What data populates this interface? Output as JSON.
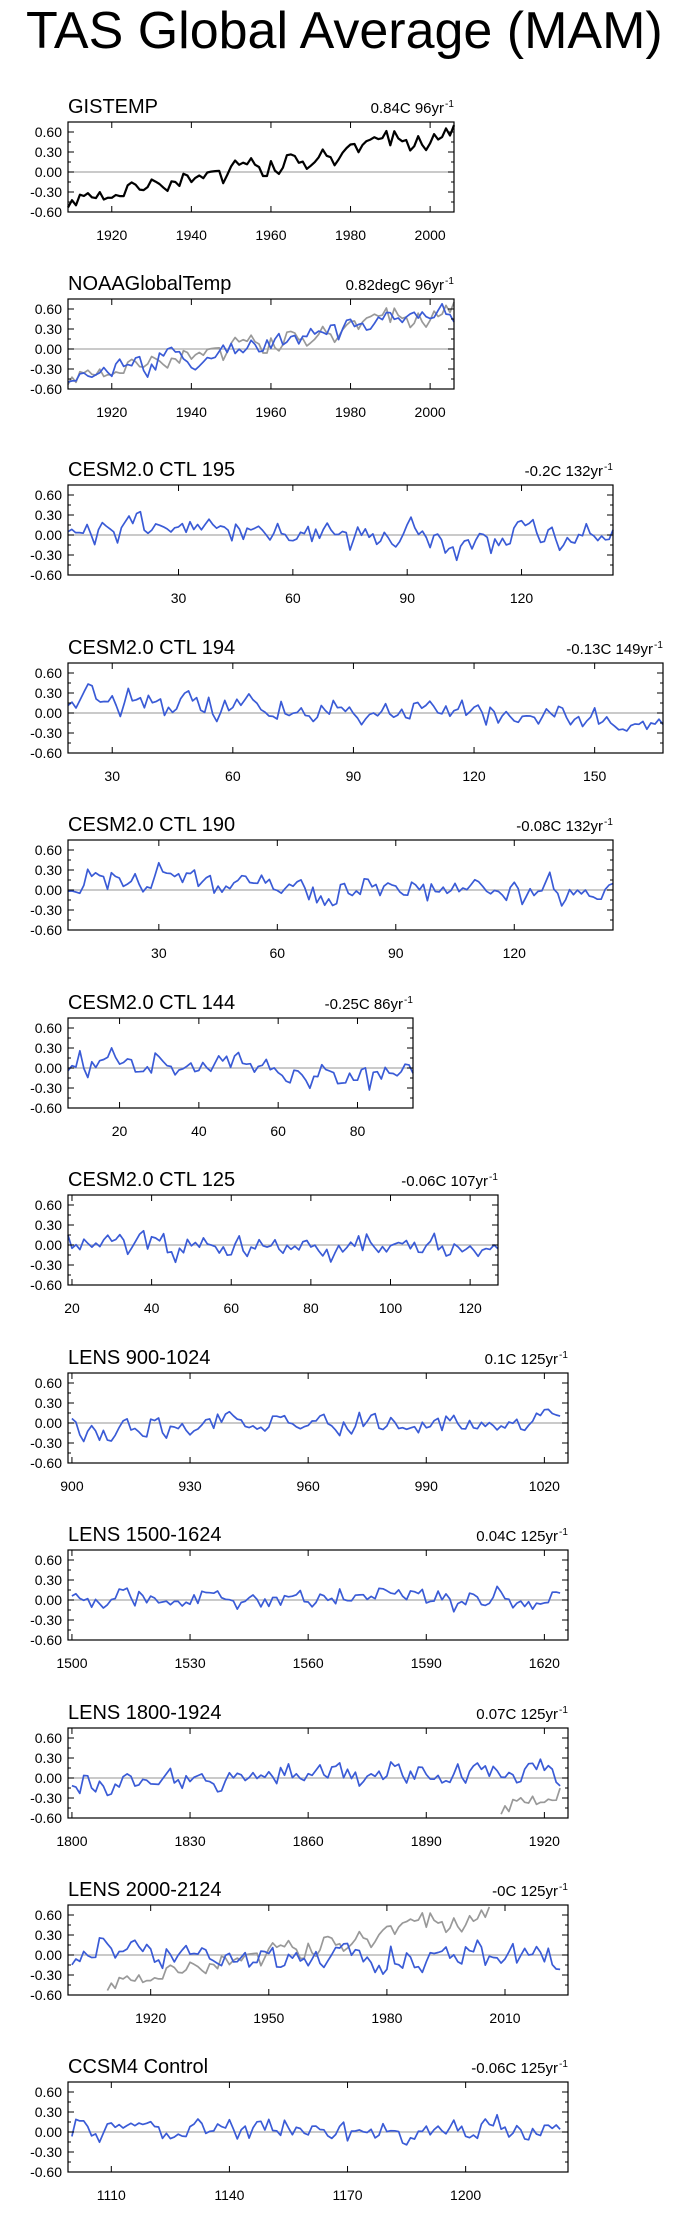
{
  "title": "TAS Global Average (MAM)",
  "colors": {
    "observed": "#000000",
    "model": "#3a5bd6",
    "reference": "#999999",
    "zero_line": "#aaaaaa"
  },
  "chart_data": [
    {
      "type": "line",
      "title": "GISTEMP",
      "trend": "0.84C 96yr",
      "trend_exp": "-1",
      "xlim": [
        1909,
        2006
      ],
      "ylim": [
        -0.6,
        0.75
      ],
      "yticks": [
        "0.60",
        "0.30",
        "0.00",
        "-0.30",
        "-0.60"
      ],
      "ytick_values": [
        0.6,
        0.3,
        0,
        -0.3,
        -0.6
      ],
      "xticks": [
        "1920",
        "1940",
        "1960",
        "1980",
        "2000"
      ],
      "xtick_values": [
        1920,
        1940,
        1960,
        1980,
        2000
      ],
      "series": [
        {
          "name": "GISTEMP",
          "color": "#000000",
          "seed": 11,
          "x_start": 1909,
          "x_end": 2006,
          "start": -0.45,
          "end": 0.6,
          "noise": 0.09
        }
      ]
    },
    {
      "type": "line",
      "title": "NOAAGlobalTemp",
      "trend": "0.82degC 96yr",
      "trend_exp": "-1",
      "xlim": [
        1909,
        2006
      ],
      "ylim": [
        -0.6,
        0.75
      ],
      "yticks": [
        "0.60",
        "0.30",
        "0.00",
        "-0.30",
        "-0.60"
      ],
      "ytick_values": [
        0.6,
        0.3,
        0,
        -0.3,
        -0.6
      ],
      "xticks": [
        "1920",
        "1940",
        "1960",
        "1980",
        "2000"
      ],
      "xtick_values": [
        1920,
        1940,
        1960,
        1980,
        2000
      ],
      "series": [
        {
          "name": "GISTEMP",
          "color": "#999999",
          "seed": 11,
          "x_start": 1909,
          "x_end": 2006,
          "start": -0.45,
          "end": 0.6,
          "noise": 0.09
        },
        {
          "name": "NOAAGlobalTemp",
          "color": "#3a5bd6",
          "seed": 12,
          "x_start": 1909,
          "x_end": 2006,
          "start": -0.42,
          "end": 0.58,
          "noise": 0.09
        }
      ]
    },
    {
      "type": "line",
      "title": "CESM2.0 CTL 195",
      "trend": "-0.2C 132yr",
      "trend_exp": "-1",
      "xlim": [
        1,
        144
      ],
      "ylim": [
        -0.6,
        0.75
      ],
      "yticks": [
        "0.60",
        "0.30",
        "0.00",
        "-0.30",
        "-0.60"
      ],
      "ytick_values": [
        0.6,
        0.3,
        0,
        -0.3,
        -0.6
      ],
      "xticks": [
        "30",
        "60",
        "90",
        "120"
      ],
      "xtick_values": [
        30,
        60,
        90,
        120
      ],
      "series": [
        {
          "name": "CESM2.0 CTL 195",
          "color": "#3a5bd6",
          "seed": 21,
          "x_start": 1,
          "x_end": 144,
          "start": 0.1,
          "end": -0.1,
          "noise": 0.13
        }
      ]
    },
    {
      "type": "line",
      "title": "CESM2.0 CTL 194",
      "trend": "-0.13C 149yr",
      "trend_exp": "-1",
      "xlim": [
        19,
        167
      ],
      "ylim": [
        -0.6,
        0.75
      ],
      "yticks": [
        "0.60",
        "0.30",
        "0.00",
        "-0.30",
        "-0.60"
      ],
      "ytick_values": [
        0.6,
        0.3,
        0,
        -0.3,
        -0.6
      ],
      "xticks": [
        "30",
        "60",
        "90",
        "120",
        "150"
      ],
      "xtick_values": [
        30,
        60,
        90,
        120,
        150
      ],
      "series": [
        {
          "name": "CESM2.0 CTL 194",
          "color": "#3a5bd6",
          "seed": 22,
          "x_start": 19,
          "x_end": 167,
          "start": 0.15,
          "end": -0.12,
          "noise": 0.12
        }
      ]
    },
    {
      "type": "line",
      "title": "CESM2.0 CTL 190",
      "trend": "-0.08C 132yr",
      "trend_exp": "-1",
      "xlim": [
        7,
        145
      ],
      "ylim": [
        -0.6,
        0.75
      ],
      "yticks": [
        "0.60",
        "0.30",
        "0.00",
        "-0.30",
        "-0.60"
      ],
      "ytick_values": [
        0.6,
        0.3,
        0,
        -0.3,
        -0.6
      ],
      "xticks": [
        "30",
        "60",
        "90",
        "120"
      ],
      "xtick_values": [
        30,
        60,
        90,
        120
      ],
      "series": [
        {
          "name": "CESM2.0 CTL 190",
          "color": "#3a5bd6",
          "seed": 23,
          "x_start": 7,
          "x_end": 145,
          "start": 0.15,
          "end": -0.05,
          "noise": 0.12
        }
      ]
    },
    {
      "type": "line",
      "title": "CESM2.0 CTL 144",
      "trend": "-0.25C 86yr",
      "trend_exp": "-1",
      "xlim": [
        7,
        94
      ],
      "ylim": [
        -0.6,
        0.75
      ],
      "yticks": [
        "0.60",
        "0.30",
        "0.00",
        "-0.30",
        "-0.60"
      ],
      "ytick_values": [
        0.6,
        0.3,
        0,
        -0.3,
        -0.6
      ],
      "xticks": [
        "20",
        "40",
        "60",
        "80"
      ],
      "xtick_values": [
        20,
        40,
        60,
        80
      ],
      "series": [
        {
          "name": "CESM2.0 CTL 144",
          "color": "#3a5bd6",
          "seed": 24,
          "x_start": 7,
          "x_end": 94,
          "start": 0.12,
          "end": -0.15,
          "noise": 0.12
        }
      ]
    },
    {
      "type": "line",
      "title": "CESM2.0 CTL 125",
      "trend": "-0.06C 107yr",
      "trend_exp": "-1",
      "xlim": [
        19,
        127
      ],
      "ylim": [
        -0.6,
        0.75
      ],
      "yticks": [
        "0.60",
        "0.30",
        "0.00",
        "-0.30",
        "-0.60"
      ],
      "ytick_values": [
        0.6,
        0.3,
        0,
        -0.3,
        -0.6
      ],
      "xticks": [
        "20",
        "40",
        "60",
        "80",
        "100",
        "120"
      ],
      "xtick_values": [
        20,
        40,
        60,
        80,
        100,
        120
      ],
      "series": [
        {
          "name": "CESM2.0 CTL 125",
          "color": "#3a5bd6",
          "seed": 25,
          "x_start": 19,
          "x_end": 127,
          "start": 0.0,
          "end": -0.05,
          "noise": 0.11
        }
      ]
    },
    {
      "type": "line",
      "title": "LENS 900-1024",
      "trend": "0.1C 125yr",
      "trend_exp": "-1",
      "xlim": [
        899,
        1026
      ],
      "ylim": [
        -0.6,
        0.75
      ],
      "yticks": [
        "0.60",
        "0.30",
        "0.00",
        "-0.30",
        "-0.60"
      ],
      "ytick_values": [
        0.6,
        0.3,
        0,
        -0.3,
        -0.6
      ],
      "xticks": [
        "900",
        "930",
        "960",
        "990",
        "1020"
      ],
      "xtick_values": [
        900,
        930,
        960,
        990,
        1020
      ],
      "series": [
        {
          "name": "LENS 900-1024",
          "color": "#3a5bd6",
          "seed": 31,
          "x_start": 900,
          "x_end": 1024,
          "start": -0.05,
          "end": 0.05,
          "noise": 0.1
        }
      ]
    },
    {
      "type": "line",
      "title": "LENS 1500-1624",
      "trend": "0.04C 125yr",
      "trend_exp": "-1",
      "xlim": [
        1499,
        1626
      ],
      "ylim": [
        -0.6,
        0.75
      ],
      "yticks": [
        "0.60",
        "0.30",
        "0.00",
        "-0.30",
        "-0.60"
      ],
      "ytick_values": [
        0.6,
        0.3,
        0,
        -0.3,
        -0.6
      ],
      "xticks": [
        "1500",
        "1530",
        "1560",
        "1590",
        "1620"
      ],
      "xtick_values": [
        1500,
        1530,
        1560,
        1590,
        1620
      ],
      "series": [
        {
          "name": "LENS 1500-1624",
          "color": "#3a5bd6",
          "seed": 32,
          "x_start": 1500,
          "x_end": 1624,
          "start": 0.0,
          "end": 0.03,
          "noise": 0.09
        }
      ]
    },
    {
      "type": "line",
      "title": "LENS 1800-1924",
      "trend": "0.07C 125yr",
      "trend_exp": "-1",
      "xlim": [
        1799,
        1926
      ],
      "ylim": [
        -0.6,
        0.75
      ],
      "yticks": [
        "0.60",
        "0.30",
        "0.00",
        "-0.30",
        "-0.60"
      ],
      "ytick_values": [
        0.6,
        0.3,
        0,
        -0.3,
        -0.6
      ],
      "xticks": [
        "1800",
        "1830",
        "1860",
        "1890",
        "1920"
      ],
      "xtick_values": [
        1800,
        1830,
        1860,
        1890,
        1920
      ],
      "series": [
        {
          "name": "GISTEMP",
          "color": "#999999",
          "seed": 11,
          "x_start": 1909,
          "x_end": 1924,
          "start": -0.45,
          "end": -0.25,
          "noise": 0.1
        },
        {
          "name": "LENS 1800-1924",
          "color": "#3a5bd6",
          "seed": 33,
          "x_start": 1800,
          "x_end": 1924,
          "start": -0.02,
          "end": 0.05,
          "noise": 0.11
        }
      ]
    },
    {
      "type": "line",
      "title": "LENS 2000-2124",
      "trend": "-0C 125yr",
      "trend_exp": "-1",
      "xlim": [
        1899,
        2026
      ],
      "ylim": [
        -0.6,
        0.75
      ],
      "yticks": [
        "0.60",
        "0.30",
        "0.00",
        "-0.30",
        "-0.60"
      ],
      "ytick_values": [
        0.6,
        0.3,
        0,
        -0.3,
        -0.6
      ],
      "xticks": [
        "1920",
        "1950",
        "1980",
        "2010"
      ],
      "xtick_values": [
        1920,
        1950,
        1980,
        2010
      ],
      "series": [
        {
          "name": "GISTEMP",
          "color": "#999999",
          "seed": 11,
          "x_start": 1909,
          "x_end": 2006,
          "start": -0.45,
          "end": 0.62,
          "noise": 0.09
        },
        {
          "name": "LENS 2000-2124",
          "color": "#3a5bd6",
          "seed": 34,
          "x_start": 1900,
          "x_end": 2024,
          "start": 0.02,
          "end": -0.02,
          "noise": 0.12
        }
      ]
    },
    {
      "type": "line",
      "title": "CCSM4 Control",
      "trend": "-0.06C 125yr",
      "trend_exp": "-1",
      "xlim": [
        1099,
        1226
      ],
      "ylim": [
        -0.6,
        0.75
      ],
      "yticks": [
        "0.60",
        "0.30",
        "0.00",
        "-0.30",
        "-0.60"
      ],
      "ytick_values": [
        0.6,
        0.3,
        0,
        -0.3,
        -0.6
      ],
      "xticks": [
        "1110",
        "1140",
        "1170",
        "1200"
      ],
      "xtick_values": [
        1110,
        1140,
        1170,
        1200
      ],
      "series": [
        {
          "name": "CCSM4 Control",
          "color": "#3a5bd6",
          "seed": 41,
          "x_start": 1100,
          "x_end": 1224,
          "start": 0.05,
          "end": -0.02,
          "noise": 0.11
        }
      ]
    }
  ]
}
